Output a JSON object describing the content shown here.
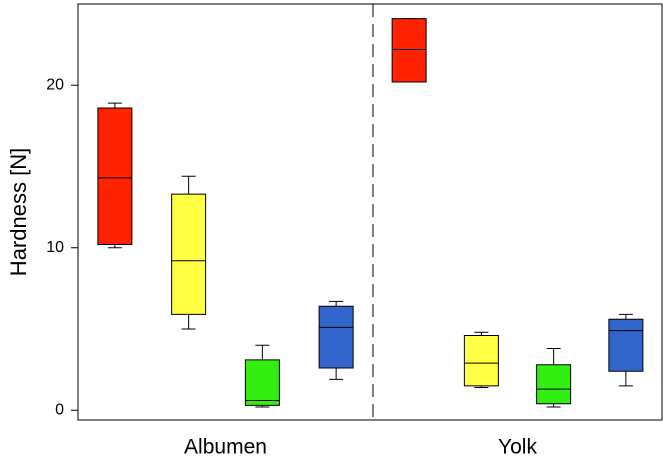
{
  "chart_data": {
    "type": "box",
    "ylabel": "Hardness [N]",
    "ylim": [
      -0.6,
      25
    ],
    "yticks": [
      0,
      10,
      20
    ],
    "ytick_labels": [
      "0",
      "10",
      "20"
    ],
    "grid": false,
    "legend": "none",
    "panels": [
      {
        "label": "Albumen",
        "boxes": [
          {
            "color": "#ff2200",
            "whisker_low": 10.0,
            "q1": 10.2,
            "median": 14.3,
            "q3": 18.6,
            "whisker_high": 18.9
          },
          {
            "color": "#ffff44",
            "whisker_low": 5.0,
            "q1": 5.9,
            "median": 9.2,
            "q3": 13.3,
            "whisker_high": 14.4
          },
          {
            "color": "#33ee11",
            "whisker_low": 0.2,
            "q1": 0.3,
            "median": 0.6,
            "q3": 3.1,
            "whisker_high": 4.0
          },
          {
            "color": "#3366cc",
            "whisker_low": 1.9,
            "q1": 2.6,
            "median": 5.1,
            "q3": 6.4,
            "whisker_high": 6.7
          }
        ]
      },
      {
        "label": "Yolk",
        "boxes": [
          {
            "color": "#ff2200",
            "whisker_low": 20.2,
            "q1": 20.2,
            "median": 22.2,
            "q3": 24.1,
            "whisker_high": 24.1
          },
          {
            "color": "#ffff44",
            "whisker_low": 1.4,
            "q1": 1.5,
            "median": 2.9,
            "q3": 4.6,
            "whisker_high": 4.8
          },
          {
            "color": "#33ee11",
            "whisker_low": 0.2,
            "q1": 0.4,
            "median": 1.3,
            "q3": 2.8,
            "whisker_high": 3.8
          },
          {
            "color": "#3366cc",
            "whisker_low": 1.5,
            "q1": 2.4,
            "median": 4.9,
            "q3": 5.6,
            "whisker_high": 5.9
          }
        ]
      }
    ]
  }
}
